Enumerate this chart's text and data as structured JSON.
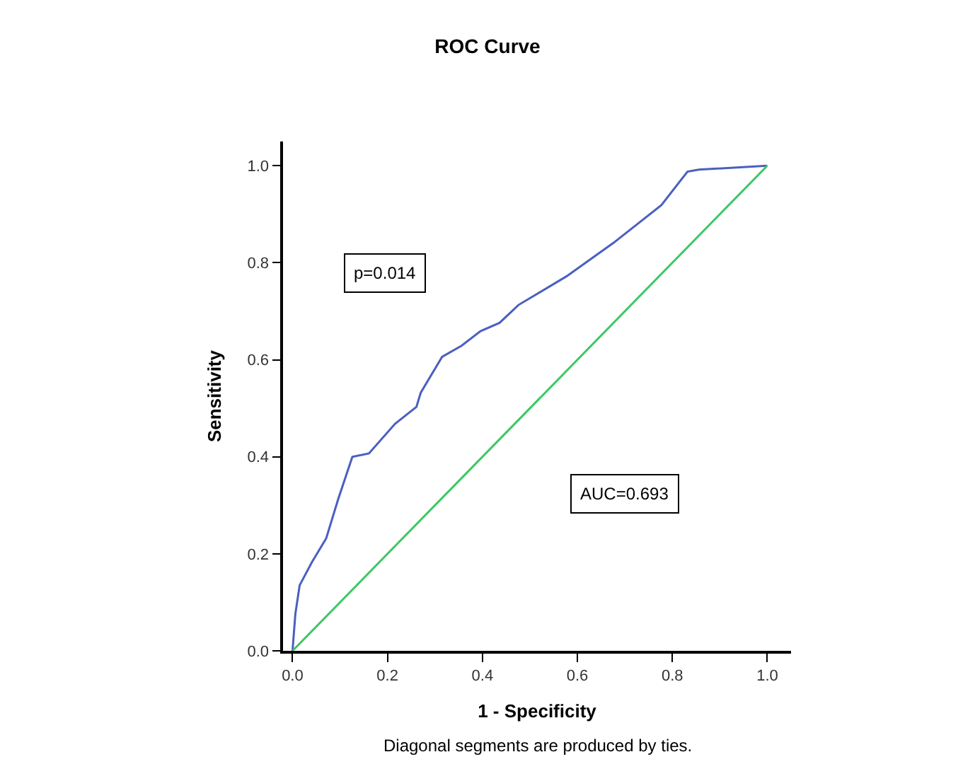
{
  "chart_data": {
    "type": "line",
    "title": "ROC Curve",
    "xlabel": "1 - Specificity",
    "ylabel": "Sensitivity",
    "xlim": [
      -0.02,
      1.05
    ],
    "ylim": [
      0,
      1.05
    ],
    "xticks": [
      {
        "value": 0,
        "label": "0.0"
      },
      0.2,
      0.4,
      0.6,
      0.8,
      {
        "value": 1,
        "label": "1.0"
      }
    ],
    "yticks": [
      {
        "value": 0,
        "label": "0.0"
      },
      0.2,
      0.4,
      0.6,
      0.8,
      {
        "value": 1,
        "label": "1.0"
      }
    ],
    "marker": "none",
    "line_style": "solid",
    "series": [
      {
        "color": "#4a5fc1",
        "x": [
          0,
          0.006,
          0.015,
          0.041,
          0.071,
          0.096,
          0.126,
          0.161,
          0.216,
          0.261,
          0.27,
          0.315,
          0.356,
          0.396,
          0.436,
          0.476,
          0.577,
          0.676,
          0.777,
          0.832,
          0.856,
          1.0
        ],
        "values": [
          0,
          0.076,
          0.135,
          0.183,
          0.232,
          0.312,
          0.4,
          0.407,
          0.468,
          0.503,
          0.532,
          0.606,
          0.629,
          0.659,
          0.676,
          0.713,
          0.772,
          0.841,
          0.919,
          0.988,
          0.992,
          1.0
        ]
      },
      {
        "color": "#3cc864",
        "x": [
          0,
          1
        ],
        "values": [
          0,
          1
        ]
      }
    ],
    "annotations": [
      "p=0.014",
      "AUC=0.693",
      "Diagonal segments are produced by ties."
    ]
  }
}
